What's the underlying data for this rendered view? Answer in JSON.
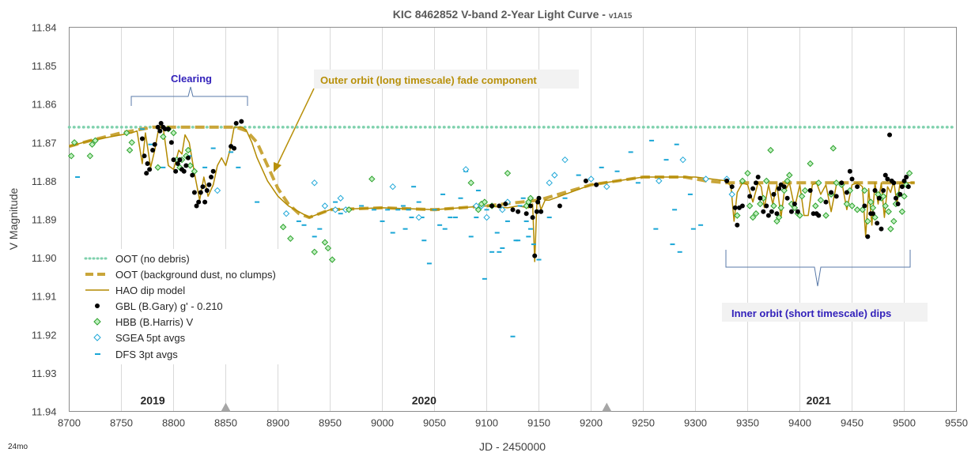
{
  "chart_data": {
    "type": "scatter",
    "title": "KIC 8462852 V-band 2-Year Light Curve - ",
    "title_version": "v1A15",
    "xlabel": "JD - 2450000",
    "ylabel": "V Magnitude",
    "xlim": [
      8700,
      9550
    ],
    "ylim": [
      11.84,
      11.94
    ],
    "y_inverted": true,
    "grid": "vertical",
    "x_ticks": [
      "8700",
      "8750",
      "8800",
      "8850",
      "8900",
      "8950",
      "9000",
      "9050",
      "9100",
      "9150",
      "9200",
      "9250",
      "9300",
      "9350",
      "9400",
      "9450",
      "9500",
      "9550"
    ],
    "y_ticks": [
      "11.84",
      "11.85",
      "11.86",
      "11.87",
      "11.88",
      "11.89",
      "11.90",
      "11.91",
      "11.92",
      "11.93",
      "11.94"
    ],
    "legend_position": "bottom-left",
    "legend": [
      "OOT (no debris)",
      "OOT (background dust, no clumps)",
      "HAO dip model",
      "GBL (B.Gary) g' - 0.210",
      "HBB (B.Harris) V",
      "SGEA 5pt avgs",
      "DFS  3pt avgs"
    ],
    "colors": {
      "oot_nodebris": "#7fd1ad",
      "oot_dust": "#c9a63a",
      "hao": "#b38a00",
      "gbl": "#000000",
      "hbb": "#2ca02c",
      "hbb_fill": "#bff0bf",
      "sgea": "#20a8d8",
      "dfs": "#1aa6d6"
    },
    "years": [
      {
        "label": "2019",
        "x": 8780
      },
      {
        "label": "2020",
        "x": 9040
      },
      {
        "label": "2021",
        "x": 9418
      }
    ],
    "markers_x": [
      8850,
      9215
    ],
    "annotations": {
      "clearing": "Clearing",
      "outer": "Outer orbit (long timescale) fade component",
      "inner": "Inner orbit (short timescale) dips"
    },
    "corner_label": "24mo",
    "oot_nodebris": {
      "x": [
        8700,
        9550
      ],
      "y": [
        11.866,
        11.866
      ]
    },
    "oot_dust": {
      "x": [
        8700,
        8720,
        8750,
        8780,
        8800,
        8820,
        8840,
        8860,
        8870,
        8880,
        8890,
        8900,
        8910,
        8920,
        8930,
        8950,
        9000,
        9050,
        9100,
        9150,
        9200,
        9250,
        9270,
        9290,
        9310,
        9330,
        9400,
        9450,
        9510
      ],
      "y": [
        11.871,
        11.8695,
        11.8675,
        11.866,
        11.866,
        11.866,
        11.866,
        11.866,
        11.867,
        11.87,
        11.876,
        11.882,
        11.886,
        11.8885,
        11.8895,
        11.8875,
        11.887,
        11.8875,
        11.8865,
        11.885,
        11.881,
        11.879,
        11.879,
        11.879,
        11.88,
        11.8805,
        11.8805,
        11.8805,
        11.8805
      ]
    },
    "hao": {
      "x": [
        8700,
        8720,
        8740,
        8760,
        8765,
        8770,
        8773,
        8778,
        8782,
        8786,
        8790,
        8795,
        8800,
        8805,
        8808,
        8811,
        8815,
        8820,
        8825,
        8829,
        8833,
        8838,
        8842,
        8846,
        8850,
        8854,
        8858,
        8862,
        8866,
        8870,
        8875,
        8880,
        8890,
        8900,
        8910,
        8920,
        8930,
        8950,
        9000,
        9050,
        9100,
        9120,
        9130,
        9140,
        9144,
        9146,
        9148,
        9150,
        9152,
        9156,
        9160,
        9200,
        9250,
        9300,
        9330,
        9334,
        9337,
        9340,
        9345,
        9350,
        9355,
        9360,
        9363,
        9366,
        9370,
        9374,
        9378,
        9382,
        9385,
        9390,
        9395,
        9400,
        9404,
        9408,
        9412,
        9416,
        9420,
        9425,
        9430,
        9435,
        9440,
        9445,
        9450,
        9455,
        9460,
        9463,
        9466,
        9469,
        9472,
        9475,
        9478,
        9481,
        9484,
        9487,
        9490,
        9493,
        9496,
        9500,
        9505,
        9510
      ],
      "y": [
        11.871,
        11.8695,
        11.8685,
        11.8675,
        11.867,
        11.8755,
        11.8675,
        11.8765,
        11.872,
        11.866,
        11.866,
        11.876,
        11.877,
        11.872,
        11.873,
        11.868,
        11.87,
        11.878,
        11.885,
        11.879,
        11.884,
        11.881,
        11.876,
        11.874,
        11.876,
        11.872,
        11.866,
        11.866,
        11.866,
        11.867,
        11.87,
        11.874,
        11.88,
        11.884,
        11.8865,
        11.888,
        11.8895,
        11.8875,
        11.887,
        11.8875,
        11.8865,
        11.887,
        11.8865,
        11.887,
        11.886,
        11.901,
        11.886,
        11.885,
        11.8875,
        11.885,
        11.885,
        11.881,
        11.879,
        11.879,
        11.88,
        11.8815,
        11.8905,
        11.883,
        11.8805,
        11.881,
        11.8855,
        11.8805,
        11.8815,
        11.887,
        11.881,
        11.886,
        11.881,
        11.8895,
        11.883,
        11.8805,
        11.887,
        11.881,
        11.889,
        11.889,
        11.881,
        11.8805,
        11.8835,
        11.881,
        11.888,
        11.881,
        11.88,
        11.8875,
        11.881,
        11.8805,
        11.8815,
        11.8945,
        11.882,
        11.8915,
        11.8805,
        11.886,
        11.8805,
        11.8895,
        11.8815,
        11.883,
        11.88,
        11.886,
        11.8805,
        11.8805,
        11.8805,
        11.8805
      ]
    },
    "gbl": {
      "x": [
        8770,
        8772,
        8774,
        8775,
        8777,
        8780,
        8782,
        8785,
        8787,
        8788,
        8790,
        8792,
        8795,
        8798,
        8800,
        8802,
        8804,
        8806,
        8808,
        8810,
        8812,
        8814,
        8818,
        8820,
        8822,
        8824,
        8826,
        8828,
        8830,
        8832,
        8834,
        8836,
        8838,
        8855,
        8858,
        8860,
        8865,
        9105,
        9112,
        9118,
        9125,
        9130,
        9138,
        9142,
        9144,
        9146,
        9148,
        9149,
        9150,
        9152,
        9170,
        9195,
        9205,
        9330,
        9335,
        9338,
        9340,
        9342,
        9345,
        9352,
        9355,
        9358,
        9360,
        9362,
        9365,
        9368,
        9370,
        9373,
        9375,
        9378,
        9380,
        9382,
        9385,
        9388,
        9392,
        9395,
        9398,
        9410,
        9413,
        9416,
        9418,
        9425,
        9430,
        9435,
        9440,
        9445,
        9448,
        9450,
        9455,
        9462,
        9465,
        9468,
        9470,
        9472,
        9474,
        9476,
        9478,
        9480,
        9482,
        9484,
        9486,
        9488,
        9490,
        9492,
        9494,
        9496,
        9498,
        9500,
        9502,
        9504
      ],
      "y": [
        11.869,
        11.8735,
        11.878,
        11.8755,
        11.877,
        11.872,
        11.8705,
        11.866,
        11.867,
        11.865,
        11.866,
        11.8665,
        11.8665,
        11.87,
        11.8745,
        11.8775,
        11.8755,
        11.8745,
        11.877,
        11.8775,
        11.876,
        11.874,
        11.8785,
        11.883,
        11.8865,
        11.8855,
        11.883,
        11.8815,
        11.8855,
        11.8825,
        11.881,
        11.879,
        11.8775,
        11.871,
        11.8715,
        11.865,
        11.8645,
        11.8865,
        11.8865,
        11.886,
        11.8875,
        11.888,
        11.8885,
        11.8865,
        11.8895,
        11.8995,
        11.888,
        11.8855,
        11.8845,
        11.888,
        11.8865,
        11.88,
        11.881,
        11.88,
        11.8815,
        11.887,
        11.8915,
        11.887,
        11.8865,
        11.884,
        11.882,
        11.8805,
        11.879,
        11.8845,
        11.888,
        11.8865,
        11.889,
        11.888,
        11.8835,
        11.8885,
        11.882,
        11.881,
        11.8815,
        11.8845,
        11.888,
        11.886,
        11.888,
        11.8825,
        11.8885,
        11.8885,
        11.889,
        11.8855,
        11.883,
        11.884,
        11.8805,
        11.883,
        11.8775,
        11.8795,
        11.8815,
        11.8865,
        11.8945,
        11.8885,
        11.8885,
        11.8825,
        11.891,
        11.8845,
        11.8925,
        11.8825,
        11.8785,
        11.8795,
        11.868,
        11.88,
        11.8805,
        11.8845,
        11.886,
        11.8835,
        11.8815,
        11.88,
        11.879,
        11.8815
      ]
    },
    "hbb": {
      "x": [
        8702,
        8705,
        8720,
        8722,
        8725,
        8755,
        8758,
        8760,
        8785,
        8790,
        8795,
        8800,
        8803,
        8806,
        8808,
        8812,
        8814,
        8816,
        8820,
        8905,
        8912,
        8935,
        8945,
        8948,
        8952,
        8968,
        8990,
        9085,
        9092,
        9095,
        9098,
        9105,
        9120,
        9138,
        9140,
        9142,
        9340,
        9345,
        9350,
        9352,
        9355,
        9358,
        9362,
        9365,
        9368,
        9372,
        9375,
        9378,
        9380,
        9382,
        9385,
        9388,
        9390,
        9392,
        9395,
        9398,
        9400,
        9402,
        9405,
        9410,
        9415,
        9418,
        9420,
        9425,
        9430,
        9432,
        9435,
        9440,
        9445,
        9448,
        9450,
        9455,
        9460,
        9462,
        9465,
        9468,
        9470,
        9472,
        9475,
        9478,
        9480,
        9482,
        9485,
        9487,
        9490,
        9492,
        9495,
        9498,
        9500,
        9502,
        9505
      ],
      "y": [
        11.8735,
        11.87,
        11.8735,
        11.8705,
        11.8695,
        11.8675,
        11.872,
        11.87,
        11.8765,
        11.8685,
        11.8665,
        11.8675,
        11.8745,
        11.8765,
        11.8745,
        11.8735,
        11.872,
        11.876,
        11.8775,
        11.892,
        11.895,
        11.8985,
        11.896,
        11.8975,
        11.9005,
        11.8875,
        11.8795,
        11.8805,
        11.8875,
        11.886,
        11.8855,
        11.8865,
        11.878,
        11.8865,
        11.8855,
        11.8845,
        11.889,
        11.88,
        11.878,
        11.8865,
        11.8895,
        11.8885,
        11.886,
        11.8845,
        11.88,
        11.872,
        11.8865,
        11.8905,
        11.8895,
        11.887,
        11.8825,
        11.88,
        11.8785,
        11.886,
        11.887,
        11.8885,
        11.889,
        11.884,
        11.8825,
        11.8755,
        11.8865,
        11.8805,
        11.885,
        11.889,
        11.8835,
        11.8715,
        11.8805,
        11.881,
        11.886,
        11.8825,
        11.8865,
        11.8875,
        11.8875,
        11.8825,
        11.8905,
        11.8855,
        11.887,
        11.8895,
        11.8835,
        11.8845,
        11.884,
        11.8865,
        11.888,
        11.8925,
        11.8905,
        11.886,
        11.8835,
        11.888,
        11.884,
        11.881,
        11.878
      ]
    },
    "sgea": {
      "x": [
        8842,
        8908,
        8935,
        8945,
        8955,
        8960,
        8965,
        9010,
        9035,
        9080,
        9090,
        9095,
        9100,
        9115,
        9120,
        9160,
        9165,
        9175,
        9200,
        9215,
        9265,
        9288,
        9310,
        9330,
        9335
      ],
      "y": [
        11.8825,
        11.8885,
        11.8805,
        11.8865,
        11.8875,
        11.8845,
        11.8875,
        11.8815,
        11.8895,
        11.877,
        11.8865,
        11.8865,
        11.8895,
        11.8875,
        11.8855,
        11.8805,
        11.8785,
        11.8745,
        11.8795,
        11.8815,
        11.88,
        11.8745,
        11.8795,
        11.8795,
        11.8835
      ]
    },
    "dfs": {
      "x": [
        8708,
        8770,
        8778,
        8790,
        8815,
        8830,
        8838,
        8855,
        8862,
        8880,
        8920,
        8925,
        8935,
        8940,
        8955,
        8960,
        8980,
        8992,
        9000,
        9005,
        9010,
        9015,
        9020,
        9022,
        9025,
        9028,
        9030,
        9035,
        9038,
        9040,
        9045,
        9050,
        9055,
        9058,
        9060,
        9065,
        9070,
        9075,
        9080,
        9085,
        9090,
        9092,
        9098,
        9100,
        9105,
        9110,
        9112,
        9115,
        9120,
        9125,
        9128,
        9130,
        9132,
        9135,
        9138,
        9140,
        9142,
        9145,
        9150,
        9160,
        9175,
        9188,
        9210,
        9225,
        9238,
        9245,
        9258,
        9262,
        9272,
        9278,
        9280,
        9282,
        9285,
        9295,
        9298,
        9305
      ],
      "y": [
        11.879,
        11.8665,
        11.8705,
        11.8765,
        11.8735,
        11.8765,
        11.8715,
        11.8725,
        11.8765,
        11.8855,
        11.8905,
        11.8915,
        11.8945,
        11.8925,
        11.8855,
        11.8885,
        11.8865,
        11.8875,
        11.8905,
        11.8875,
        11.8935,
        11.8875,
        11.8865,
        11.8925,
        11.8875,
        11.8895,
        11.8815,
        11.8855,
        11.8895,
        11.8955,
        11.9015,
        11.8875,
        11.8915,
        11.8835,
        11.8925,
        11.8895,
        11.8895,
        11.8845,
        11.8775,
        11.8945,
        11.8895,
        11.8825,
        11.9055,
        11.8875,
        11.8985,
        11.8935,
        11.8985,
        11.8975,
        11.8905,
        11.9205,
        11.8955,
        11.8955,
        11.8865,
        11.8845,
        11.8905,
        11.8945,
        11.8925,
        11.8965,
        11.9005,
        11.8895,
        11.8845,
        11.8785,
        11.8765,
        11.8775,
        11.8725,
        11.8805,
        11.8695,
        11.8925,
        11.8745,
        11.8965,
        11.8875,
        11.8705,
        11.8985,
        11.8835,
        11.8925,
        11.8915
      ]
    }
  }
}
